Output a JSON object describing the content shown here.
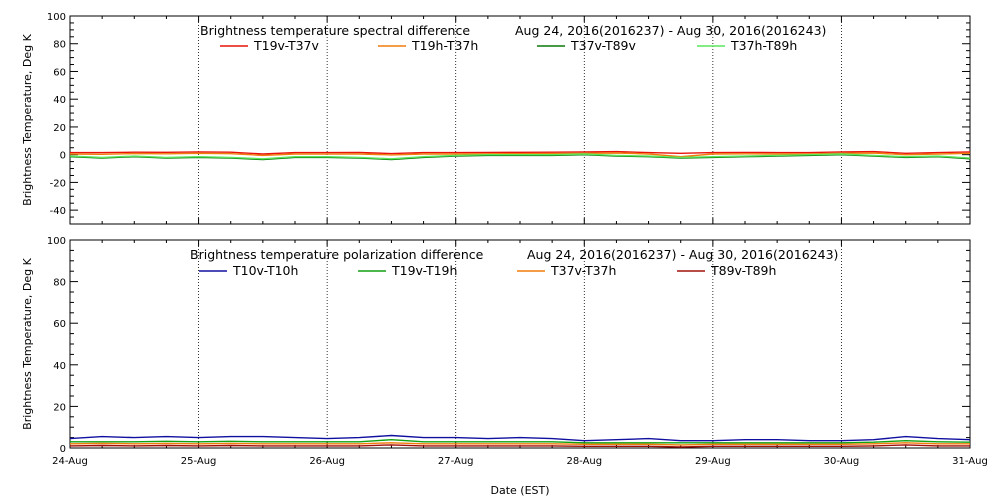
{
  "chart_data": [
    {
      "type": "line",
      "title": "Brightness temperature spectral difference",
      "subtitle": "Aug 24, 2016(2016237) - Aug 30, 2016(2016243)",
      "ylabel": "Brightness Temperature, Deg K",
      "xlabel": "",
      "xlim": [
        0,
        7
      ],
      "ylim": [
        -50,
        100
      ],
      "yticks": [
        -40,
        -20,
        0,
        20,
        40,
        60,
        80,
        100
      ],
      "ytick_labels": [
        "-40",
        "-20",
        "0",
        "20",
        "40",
        "60",
        "80",
        "100"
      ],
      "grid": "vertical dotted lines at each day",
      "legend_position": "top",
      "series": [
        {
          "name": "T19v-T37v",
          "color": "#e8140c",
          "x": [
            0,
            0.25,
            0.5,
            0.75,
            1,
            1.25,
            1.5,
            1.75,
            2,
            2.25,
            2.5,
            2.75,
            3,
            3.25,
            3.5,
            3.75,
            4,
            4.25,
            4.5,
            4.75,
            5,
            5.25,
            5.5,
            5.75,
            6,
            6.25,
            6.5,
            6.75,
            7
          ],
          "values": [
            1.5,
            1.5,
            1.8,
            1.7,
            2.0,
            1.8,
            0.5,
            1.5,
            1.5,
            1.6,
            0.8,
            1.5,
            1.5,
            1.6,
            1.7,
            1.8,
            2.0,
            2.2,
            1.5,
            1.0,
            1.5,
            1.6,
            1.5,
            1.5,
            2.0,
            2.2,
            1.0,
            1.5,
            2.0
          ]
        },
        {
          "name": "T19h-T37h",
          "color": "#f07c0a",
          "x": [
            0,
            0.25,
            0.5,
            0.75,
            1,
            1.25,
            1.5,
            1.75,
            2,
            2.25,
            2.5,
            2.75,
            3,
            3.25,
            3.5,
            3.75,
            4,
            4.25,
            4.5,
            4.75,
            5,
            5.25,
            5.5,
            5.75,
            6,
            6.25,
            6.5,
            6.75,
            7
          ],
          "values": [
            0.5,
            0.3,
            0.8,
            0.6,
            1.0,
            0.7,
            -0.5,
            0.5,
            0.4,
            0.5,
            -0.2,
            0.5,
            0.5,
            0.6,
            0.7,
            0.8,
            1.0,
            1.2,
            0.5,
            -1.5,
            0.5,
            0.6,
            0.5,
            0.5,
            1.0,
            1.2,
            0.0,
            0.5,
            1.0
          ]
        },
        {
          "name": "T37v-T89v",
          "color": "#0a7a0a",
          "x": [
            0,
            0.25,
            0.5,
            0.75,
            1,
            1.25,
            1.5,
            1.75,
            2,
            2.25,
            2.5,
            2.75,
            3,
            3.25,
            3.5,
            3.75,
            4,
            4.25,
            4.5,
            4.75,
            5,
            5.25,
            5.5,
            5.75,
            6,
            6.25,
            6.5,
            6.75,
            7
          ],
          "values": [
            -1.5,
            -2.5,
            -1.5,
            -2.5,
            -2.0,
            -2.5,
            -3.5,
            -2.0,
            -2.0,
            -2.5,
            -3.5,
            -2.0,
            -1.0,
            -0.5,
            -0.5,
            -0.5,
            0.0,
            -1.0,
            -1.5,
            -2.5,
            -2.0,
            -1.5,
            -1.0,
            -0.5,
            0.0,
            -1.0,
            -2.0,
            -1.5,
            -3.0
          ]
        },
        {
          "name": "T37h-T89h",
          "color": "#5ce65c",
          "x": [
            0,
            0.25,
            0.5,
            0.75,
            1,
            1.25,
            1.5,
            1.75,
            2,
            2.25,
            2.5,
            2.75,
            3,
            3.25,
            3.5,
            3.75,
            4,
            4.25,
            4.5,
            4.75,
            5,
            5.25,
            5.5,
            5.75,
            6,
            6.25,
            6.5,
            6.75,
            7
          ],
          "values": [
            -1.0,
            -2.0,
            -1.0,
            -2.0,
            -1.5,
            -2.0,
            -3.0,
            -1.5,
            -1.5,
            -2.0,
            -3.0,
            -1.5,
            -0.5,
            0.0,
            0.0,
            0.0,
            0.5,
            -0.5,
            -1.0,
            -2.0,
            -1.5,
            -1.0,
            -0.5,
            0.0,
            0.5,
            -0.5,
            -1.5,
            -1.0,
            -2.5
          ]
        }
      ]
    },
    {
      "type": "line",
      "title": "Brightness temperature polarization difference",
      "subtitle": "Aug 24, 2016(2016237) - Aug 30, 2016(2016243)",
      "ylabel": "Brightness Temperature, Deg K",
      "xlabel": "Date (EST)",
      "xlim": [
        0,
        7
      ],
      "ylim": [
        0,
        100
      ],
      "yticks": [
        0,
        20,
        40,
        60,
        80,
        100
      ],
      "ytick_labels": [
        "0",
        "20",
        "40",
        "60",
        "80",
        "100"
      ],
      "categories": [
        "24-Aug",
        "25-Aug",
        "26-Aug",
        "27-Aug",
        "28-Aug",
        "29-Aug",
        "30-Aug",
        "31-Aug"
      ],
      "grid": "vertical dotted lines at each day",
      "legend_position": "top",
      "series": [
        {
          "name": "T10v-T10h",
          "color": "#1010a0",
          "x": [
            0,
            0.25,
            0.5,
            0.75,
            1,
            1.25,
            1.5,
            1.75,
            2,
            2.25,
            2.5,
            2.75,
            3,
            3.25,
            3.5,
            3.75,
            4,
            4.25,
            4.5,
            4.75,
            5,
            5.25,
            5.5,
            5.75,
            6,
            6.25,
            6.5,
            6.75,
            7
          ],
          "values": [
            4.5,
            5.5,
            5.0,
            5.5,
            5.0,
            5.5,
            5.5,
            5.0,
            4.5,
            5.0,
            6.0,
            5.0,
            5.0,
            4.5,
            5.0,
            4.5,
            3.5,
            4.0,
            4.5,
            3.5,
            3.5,
            4.0,
            4.0,
            3.5,
            3.5,
            4.0,
            5.5,
            4.5,
            4.0
          ]
        },
        {
          "name": "T19v-T19h",
          "color": "#10a010",
          "x": [
            0,
            0.25,
            0.5,
            0.75,
            1,
            1.25,
            1.5,
            1.75,
            2,
            2.25,
            2.5,
            2.75,
            3,
            3.25,
            3.5,
            3.75,
            4,
            4.25,
            4.5,
            4.75,
            5,
            5.25,
            5.5,
            5.75,
            6,
            6.25,
            6.5,
            6.75,
            7
          ],
          "values": [
            3.0,
            3.0,
            3.0,
            3.2,
            3.0,
            3.2,
            3.0,
            3.0,
            3.0,
            3.0,
            4.0,
            3.0,
            3.0,
            3.0,
            3.0,
            3.0,
            2.5,
            2.5,
            2.5,
            2.5,
            2.5,
            2.5,
            2.5,
            2.5,
            2.5,
            2.8,
            3.5,
            3.0,
            2.8
          ]
        },
        {
          "name": "T37v-T37h",
          "color": "#f07c0a",
          "x": [
            0,
            0.25,
            0.5,
            0.75,
            1,
            1.25,
            1.5,
            1.75,
            2,
            2.25,
            2.5,
            2.75,
            3,
            3.25,
            3.5,
            3.75,
            4,
            4.25,
            4.5,
            4.75,
            5,
            5.25,
            5.5,
            5.75,
            6,
            6.25,
            6.5,
            6.75,
            7
          ],
          "values": [
            2.0,
            2.2,
            2.0,
            2.2,
            2.0,
            2.2,
            2.0,
            2.0,
            2.0,
            2.0,
            2.5,
            2.0,
            2.0,
            2.0,
            2.0,
            2.0,
            1.8,
            1.8,
            1.8,
            1.5,
            1.8,
            1.8,
            1.8,
            1.8,
            1.8,
            2.0,
            2.5,
            2.0,
            2.0
          ]
        },
        {
          "name": "T89v-T89h",
          "color": "#a0100a",
          "x": [
            0,
            0.25,
            0.5,
            0.75,
            1,
            1.25,
            1.5,
            1.75,
            2,
            2.25,
            2.5,
            2.75,
            3,
            3.25,
            3.5,
            3.75,
            4,
            4.25,
            4.5,
            4.75,
            5,
            5.25,
            5.5,
            5.75,
            6,
            6.25,
            6.5,
            6.75,
            7
          ],
          "values": [
            1.0,
            1.2,
            1.0,
            1.2,
            1.0,
            1.2,
            1.0,
            1.0,
            1.0,
            1.0,
            1.5,
            1.0,
            1.0,
            1.0,
            1.0,
            1.0,
            0.8,
            0.8,
            0.8,
            0.5,
            0.8,
            0.8,
            0.8,
            0.8,
            0.8,
            1.0,
            1.5,
            1.0,
            1.0
          ]
        }
      ]
    }
  ]
}
